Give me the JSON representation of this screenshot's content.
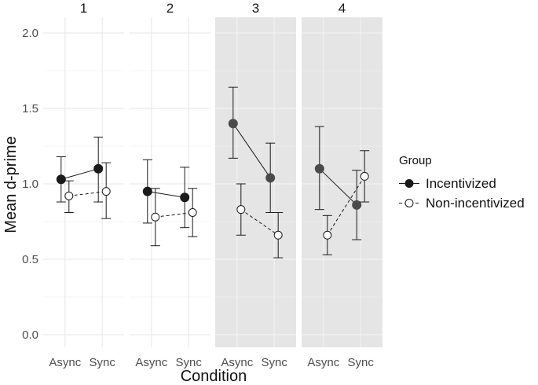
{
  "chart_data": {
    "type": "line",
    "xlabel": "Condition",
    "ylabel": "Mean d-prime",
    "ylim": [
      0,
      2
    ],
    "yticks": [
      "0.0",
      "0.5",
      "1.0",
      "1.5",
      "2.0"
    ],
    "categories": [
      "Async",
      "Sync"
    ],
    "legend": {
      "title": "Group",
      "position": "right"
    },
    "colors": {
      "panel_highlight": "#e5e5e5",
      "grid": "#ebebeb",
      "line": "#1a1a1a",
      "point_fill": "#1a1a1a",
      "point_open": "#ffffff"
    },
    "panels": [
      {
        "label": "1",
        "highlighted": false,
        "series": [
          {
            "name": "Incentivized",
            "style": "solid",
            "filled": true,
            "values": [
              1.03,
              1.1
            ],
            "lower": [
              0.88,
              0.88
            ],
            "upper": [
              1.18,
              1.31
            ]
          },
          {
            "name": "Non-incentivized",
            "style": "dashed",
            "filled": false,
            "values": [
              0.92,
              0.95
            ],
            "lower": [
              0.81,
              0.77
            ],
            "upper": [
              1.02,
              1.14
            ]
          }
        ]
      },
      {
        "label": "2",
        "highlighted": false,
        "series": [
          {
            "name": "Incentivized",
            "style": "solid",
            "filled": true,
            "values": [
              0.95,
              0.91
            ],
            "lower": [
              0.74,
              0.71
            ],
            "upper": [
              1.16,
              1.11
            ]
          },
          {
            "name": "Non-incentivized",
            "style": "dashed",
            "filled": false,
            "values": [
              0.78,
              0.81
            ],
            "lower": [
              0.59,
              0.65
            ],
            "upper": [
              0.97,
              0.97
            ]
          }
        ]
      },
      {
        "label": "3",
        "highlighted": true,
        "series": [
          {
            "name": "Incentivized",
            "style": "solid",
            "filled": true,
            "values": [
              1.4,
              1.04
            ],
            "lower": [
              1.17,
              0.81
            ],
            "upper": [
              1.64,
              1.27
            ]
          },
          {
            "name": "Non-incentivized",
            "style": "dashed",
            "filled": false,
            "values": [
              0.83,
              0.66
            ],
            "lower": [
              0.66,
              0.51
            ],
            "upper": [
              1.0,
              0.81
            ]
          }
        ]
      },
      {
        "label": "4",
        "highlighted": true,
        "series": [
          {
            "name": "Incentivized",
            "style": "solid",
            "filled": true,
            "values": [
              1.1,
              0.86
            ],
            "lower": [
              0.83,
              0.63
            ],
            "upper": [
              1.38,
              1.09
            ]
          },
          {
            "name": "Non-incentivized",
            "style": "dashed",
            "filled": false,
            "values": [
              0.66,
              1.05
            ],
            "lower": [
              0.53,
              0.88
            ],
            "upper": [
              0.79,
              1.22
            ]
          }
        ]
      }
    ]
  }
}
